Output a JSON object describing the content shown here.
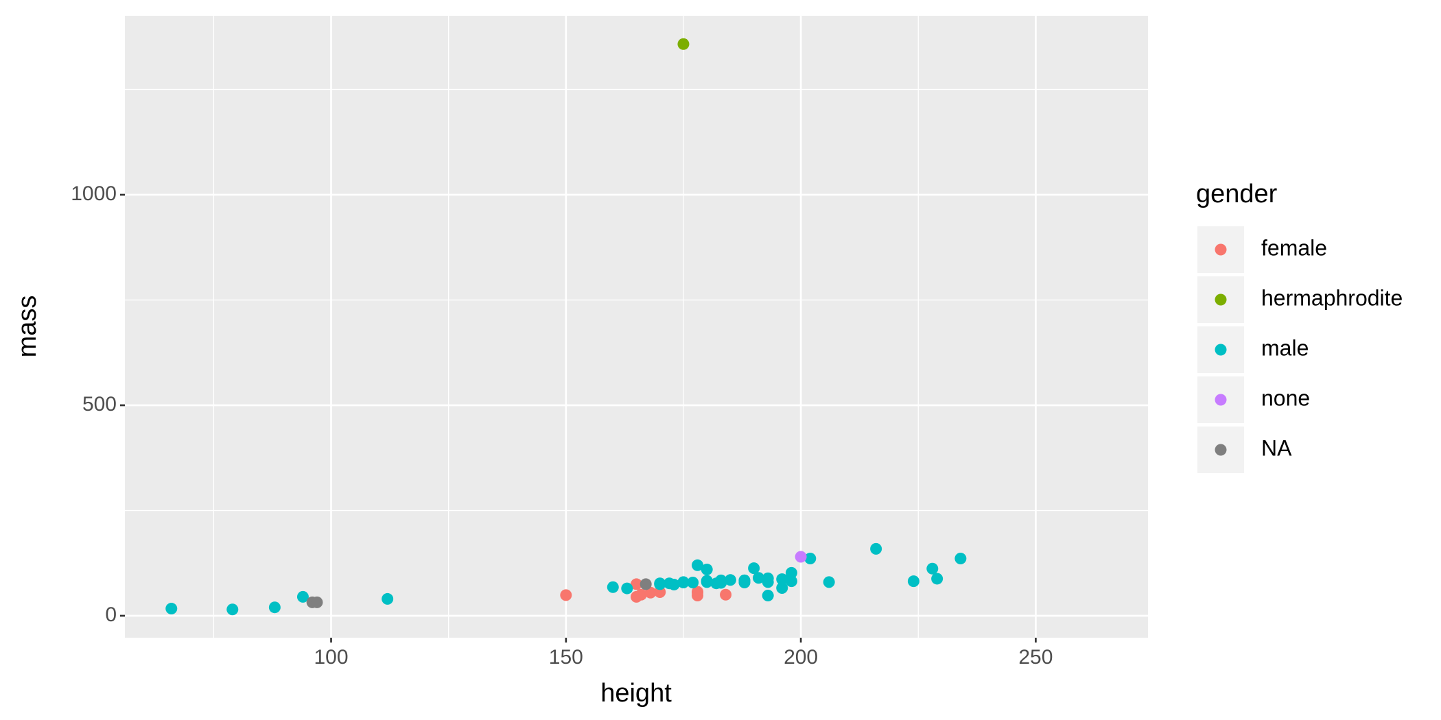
{
  "chart_data": {
    "type": "scatter",
    "x_label": "height",
    "y_label": "mass",
    "legend_title": "gender",
    "xlim": [
      56.1,
      273.9
    ],
    "ylim": [
      -52.15,
      1425.15
    ],
    "xticks": [
      100,
      150,
      200,
      250
    ],
    "yticks": [
      0,
      500,
      1000
    ],
    "grid": true,
    "legend": "right",
    "series": [
      {
        "name": "female",
        "color": "#F8766D",
        "x": [
          150,
          165,
          165,
          178,
          184,
          170,
          166,
          168,
          178,
          178
        ],
        "values": [
          49,
          75,
          45,
          55,
          50,
          56.2,
          50,
          55,
          57,
          48
        ]
      },
      {
        "name": "hermaphrodite",
        "color": "#7CAE00",
        "x": [
          175
        ],
        "values": [
          1358
        ]
      },
      {
        "name": "male",
        "color": "#00BFC4",
        "x": [
          172,
          202,
          178,
          183,
          182,
          188,
          228,
          180,
          173,
          170,
          180,
          66,
          170,
          183,
          190,
          177,
          175,
          180,
          88,
          160,
          196,
          224,
          112,
          175,
          94,
          163,
          188,
          198,
          196,
          188,
          185,
          183,
          216,
          234,
          188,
          206,
          183,
          198,
          193,
          229,
          191,
          193,
          193,
          79
        ],
        "values": [
          77,
          136,
          120,
          84,
          77,
          84,
          112,
          80,
          74,
          77,
          110,
          17,
          75,
          78.2,
          113,
          79,
          79,
          83,
          20,
          68,
          66,
          82,
          40,
          80,
          45,
          65,
          84,
          82,
          87,
          80,
          85,
          79,
          159,
          136,
          79,
          80,
          80,
          102,
          48,
          88,
          90,
          89,
          80,
          15
        ]
      },
      {
        "name": "none",
        "color": "#C77CFF",
        "x": [
          200
        ],
        "values": [
          140
        ]
      },
      {
        "name": "NA",
        "color": "#7F7F7F",
        "x": [
          167,
          96,
          97
        ],
        "values": [
          75,
          32,
          32
        ]
      }
    ]
  }
}
